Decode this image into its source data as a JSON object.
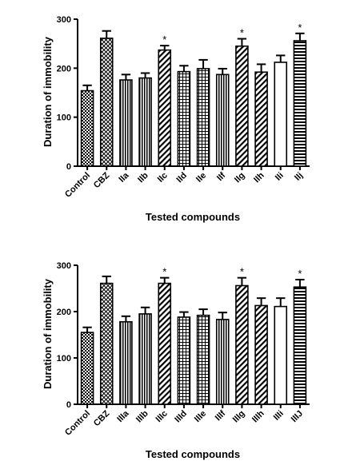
{
  "chart_data": [
    {
      "type": "bar",
      "title": "",
      "xlabel": "Tested compounds",
      "ylabel": "Duration of immobility",
      "ylim": [
        0,
        300
      ],
      "yticks": [
        0,
        100,
        200,
        300
      ],
      "categories": [
        "Control",
        "CBZ",
        "IIa",
        "IIb",
        "IIc",
        "IId",
        "IIe",
        "IIf",
        "IIg",
        "IIh",
        "IIi",
        "IIj"
      ],
      "values": [
        154,
        261,
        176,
        180,
        237,
        193,
        199,
        187,
        245,
        192,
        212,
        256
      ],
      "errors": [
        11,
        15,
        11,
        10,
        9,
        12,
        18,
        12,
        15,
        16,
        14,
        15
      ],
      "significance": [
        "",
        "",
        "",
        "",
        "*",
        "",
        "",
        "",
        "*",
        "",
        "",
        "*"
      ],
      "patterns": [
        "checker",
        "diamond",
        "vert",
        "vert",
        "diag",
        "grid",
        "grid",
        "vert",
        "diag",
        "diag",
        "white",
        "horiz"
      ],
      "grid": false
    },
    {
      "type": "bar",
      "title": "",
      "xlabel": "Tested compounds",
      "ylabel": "Duration of immobility",
      "ylim": [
        0,
        300
      ],
      "yticks": [
        0,
        100,
        200,
        300
      ],
      "categories": [
        "Control",
        "CBZ",
        "IIIa",
        "IIIb",
        "IIIc",
        "IIId",
        "IIIe",
        "IIIf",
        "IIIg",
        "IIIh",
        "IIIi",
        "IIIJ"
      ],
      "values": [
        155,
        261,
        178,
        195,
        261,
        188,
        192,
        183,
        256,
        213,
        211,
        253
      ],
      "errors": [
        11,
        15,
        12,
        14,
        12,
        11,
        13,
        15,
        17,
        16,
        18,
        16
      ],
      "significance": [
        "",
        "",
        "",
        "",
        "*",
        "",
        "",
        "",
        "*",
        "",
        "",
        "*"
      ],
      "patterns": [
        "checker",
        "diamond",
        "vert",
        "vert",
        "diag",
        "grid",
        "grid",
        "vert",
        "diag",
        "diag",
        "white",
        "horiz"
      ],
      "grid": false
    }
  ]
}
